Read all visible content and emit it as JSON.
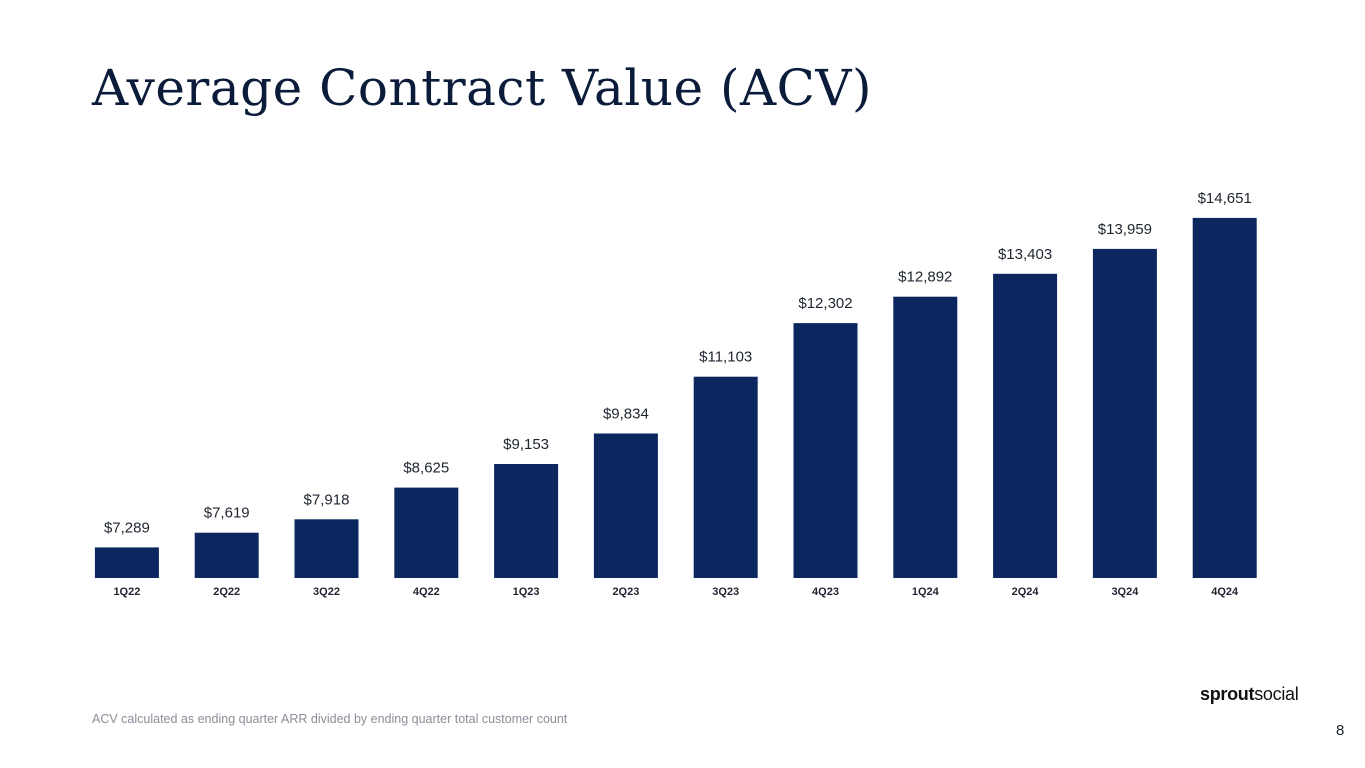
{
  "slide": {
    "title": "Average Contract Value (ACV)",
    "footnote": "ACV calculated as ending quarter ARR divided by ending quarter total customer count",
    "page_number": "8",
    "logo": {
      "bold": "sprout",
      "regular": "social"
    }
  },
  "chart_data": {
    "type": "bar",
    "title": "",
    "xlabel": "",
    "ylabel": "",
    "categories": [
      "1Q22",
      "2Q22",
      "3Q22",
      "4Q22",
      "1Q23",
      "2Q23",
      "3Q23",
      "4Q23",
      "1Q24",
      "2Q24",
      "3Q24",
      "4Q24"
    ],
    "values": [
      7289,
      7619,
      7918,
      8625,
      9153,
      9834,
      11103,
      12302,
      12892,
      13403,
      13959,
      14651
    ],
    "data_labels": [
      "$7,289",
      "$7,619",
      "$7,918",
      "$8,625",
      "$9,153",
      "$9,834",
      "$11,103",
      "$12,302",
      "$12,892",
      "$13,403",
      "$13,959",
      "$14,651"
    ],
    "bar_color": "#0c2760",
    "grid": false,
    "legend": "none"
  }
}
